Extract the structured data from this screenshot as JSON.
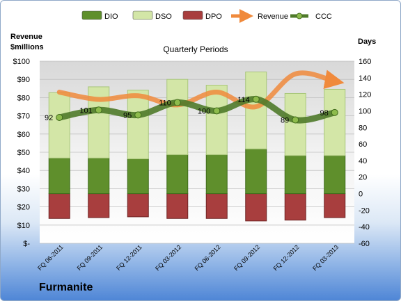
{
  "company": "Furmanite",
  "chart_data": {
    "type": "bar",
    "title": "Quarterly Periods",
    "left_axis_title": [
      "Revenue",
      "$millions"
    ],
    "right_axis_title": "Days",
    "categories": [
      "FQ 06-2011",
      "FQ 09-2011",
      "FQ 12-2011",
      "FQ 03-2012",
      "FQ 06-2012",
      "FQ 09-2012",
      "FQ 12-2012",
      "FQ 03-2013"
    ],
    "left_ticks": [
      "$-",
      "$10",
      "$20",
      "$30",
      "$40",
      "$50",
      "$60",
      "$70",
      "$80",
      "$90",
      "$100"
    ],
    "left_range": [
      0,
      100
    ],
    "right_ticks": [
      "-60",
      "-40",
      "-20",
      "0",
      "20",
      "40",
      "60",
      "80",
      "100",
      "120",
      "140",
      "160"
    ],
    "right_range": [
      -60,
      160
    ],
    "legend": [
      "DIO",
      "DSO",
      "DPO",
      "Revenue",
      "CCC"
    ],
    "legend_position": "top",
    "colors": {
      "DIO": "#5f8f2c",
      "DSO": "#d3e6a7",
      "DPO": "#a83e3e",
      "Revenue": "#f08a3c",
      "CCC": "#4f7a2a"
    },
    "series": [
      {
        "name": "DPO",
        "axis": "right",
        "values": [
          -30,
          -29,
          -28,
          -30,
          -30,
          -33,
          -32,
          -29
        ]
      },
      {
        "name": "DIO",
        "axis": "right",
        "values": [
          43,
          43,
          42,
          47,
          47,
          54,
          46,
          46
        ]
      },
      {
        "name": "DSO",
        "axis": "right",
        "values": [
          79,
          86,
          83,
          91,
          84,
          93,
          75,
          80
        ]
      },
      {
        "name": "Revenue",
        "axis": "left",
        "values": [
          83,
          79,
          81,
          76,
          83,
          75,
          93,
          89
        ]
      },
      {
        "name": "CCC",
        "axis": "right",
        "values": [
          92,
          101,
          95,
          110,
          100,
          114,
          89,
          98
        ]
      }
    ],
    "ccc_labels": [
      "92",
      "101",
      "95",
      "110",
      "100",
      "114",
      "89",
      "98"
    ]
  }
}
